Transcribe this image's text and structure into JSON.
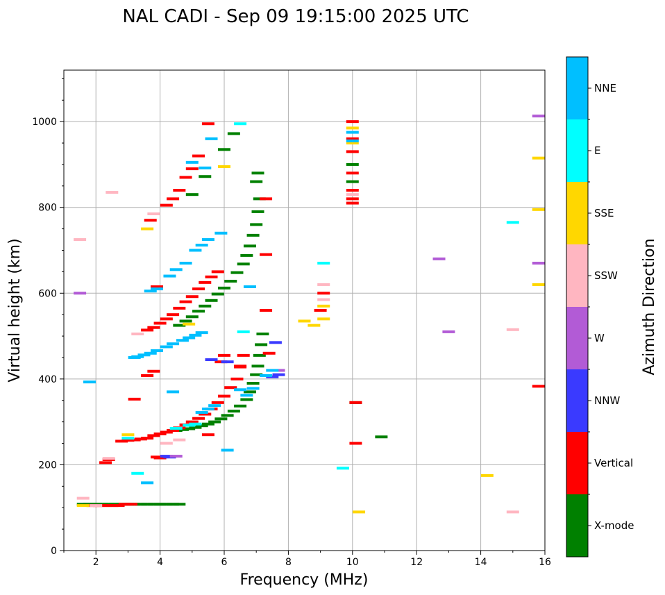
{
  "chart_data": {
    "type": "scatter",
    "title": "NAL CADI - Sep 09 19:15:00 2025 UTC",
    "xlabel": "Frequency (MHz)",
    "ylabel": "Virtual height (km)",
    "xlim": [
      1,
      16
    ],
    "ylim": [
      0,
      1120
    ],
    "xticks": [
      2,
      4,
      6,
      8,
      10,
      12,
      14,
      16
    ],
    "yticks": [
      0,
      200,
      400,
      600,
      800,
      1000
    ],
    "grid": true,
    "colorbar": {
      "label": "Azimuth Direction",
      "categories": [
        "X-mode",
        "Vertical",
        "NNW",
        "W",
        "SSW",
        "SSE",
        "E",
        "NNE"
      ],
      "colors": [
        "#008000",
        "#ff0000",
        "#3a3aff",
        "#b25bd6",
        "#ffb6c1",
        "#ffd700",
        "#00ffff",
        "#00bfff"
      ]
    },
    "series": [
      {
        "name": "X-mode",
        "points": [
          [
            1.6,
            108
          ],
          [
            1.8,
            108
          ],
          [
            2.0,
            108
          ],
          [
            2.2,
            108
          ],
          [
            2.4,
            108
          ],
          [
            2.6,
            108
          ],
          [
            2.8,
            108
          ],
          [
            3.0,
            108
          ],
          [
            3.2,
            108
          ],
          [
            3.4,
            108
          ],
          [
            3.6,
            108
          ],
          [
            3.8,
            108
          ],
          [
            4.0,
            108
          ],
          [
            4.2,
            108
          ],
          [
            4.4,
            108
          ],
          [
            4.6,
            108
          ],
          [
            4.5,
            280
          ],
          [
            4.7,
            282
          ],
          [
            4.9,
            284
          ],
          [
            5.1,
            287
          ],
          [
            5.3,
            291
          ],
          [
            5.5,
            295
          ],
          [
            5.7,
            300
          ],
          [
            5.9,
            307
          ],
          [
            6.1,
            315
          ],
          [
            6.3,
            325
          ],
          [
            6.5,
            337
          ],
          [
            6.7,
            352
          ],
          [
            6.8,
            370
          ],
          [
            6.9,
            390
          ],
          [
            7.0,
            410
          ],
          [
            7.05,
            430
          ],
          [
            7.1,
            455
          ],
          [
            7.15,
            480
          ],
          [
            7.2,
            505
          ],
          [
            4.6,
            525
          ],
          [
            4.8,
            535
          ],
          [
            5.0,
            545
          ],
          [
            5.2,
            558
          ],
          [
            5.4,
            570
          ],
          [
            5.6,
            583
          ],
          [
            5.8,
            598
          ],
          [
            6.0,
            612
          ],
          [
            6.2,
            628
          ],
          [
            6.4,
            648
          ],
          [
            6.6,
            668
          ],
          [
            6.7,
            688
          ],
          [
            6.8,
            710
          ],
          [
            6.9,
            735
          ],
          [
            7.0,
            760
          ],
          [
            7.05,
            790
          ],
          [
            7.1,
            820
          ],
          [
            7.0,
            860
          ],
          [
            7.05,
            880
          ],
          [
            6.0,
            935
          ],
          [
            6.3,
            972
          ],
          [
            5.4,
            872
          ],
          [
            5.0,
            830
          ],
          [
            10.0,
            900
          ],
          [
            10.0,
            860
          ],
          [
            10.9,
            265
          ],
          [
            10.1,
            345
          ]
        ]
      },
      {
        "name": "Vertical",
        "points": [
          [
            1.9,
            105
          ],
          [
            2.1,
            105
          ],
          [
            2.3,
            105
          ],
          [
            2.5,
            105
          ],
          [
            2.7,
            105
          ],
          [
            2.9,
            108
          ],
          [
            3.1,
            108
          ],
          [
            2.3,
            205
          ],
          [
            2.4,
            212
          ],
          [
            2.8,
            255
          ],
          [
            3.0,
            257
          ],
          [
            3.2,
            258
          ],
          [
            3.4,
            260
          ],
          [
            3.6,
            262
          ],
          [
            3.8,
            268
          ],
          [
            4.0,
            272
          ],
          [
            4.2,
            276
          ],
          [
            4.4,
            280
          ],
          [
            4.6,
            286
          ],
          [
            4.8,
            293
          ],
          [
            5.0,
            300
          ],
          [
            5.2,
            308
          ],
          [
            5.4,
            318
          ],
          [
            5.6,
            330
          ],
          [
            5.8,
            345
          ],
          [
            6.0,
            360
          ],
          [
            6.2,
            380
          ],
          [
            6.4,
            400
          ],
          [
            6.5,
            428
          ],
          [
            6.6,
            455
          ],
          [
            5.9,
            440
          ],
          [
            6.0,
            455
          ],
          [
            5.5,
            270
          ],
          [
            3.6,
            408
          ],
          [
            3.8,
            418
          ],
          [
            3.2,
            353
          ],
          [
            3.6,
            514
          ],
          [
            3.8,
            520
          ],
          [
            4.0,
            530
          ],
          [
            4.2,
            540
          ],
          [
            4.4,
            550
          ],
          [
            4.6,
            565
          ],
          [
            4.8,
            580
          ],
          [
            5.0,
            592
          ],
          [
            5.2,
            610
          ],
          [
            5.4,
            625
          ],
          [
            5.6,
            638
          ],
          [
            5.8,
            650
          ],
          [
            4.2,
            805
          ],
          [
            4.4,
            820
          ],
          [
            4.6,
            840
          ],
          [
            4.8,
            870
          ],
          [
            5.0,
            890
          ],
          [
            5.2,
            920
          ],
          [
            5.5,
            995
          ],
          [
            3.7,
            770
          ],
          [
            3.9,
            615
          ],
          [
            3.9,
            218
          ],
          [
            4.0,
            216
          ],
          [
            7.3,
            820
          ],
          [
            7.3,
            690
          ],
          [
            7.3,
            560
          ],
          [
            7.4,
            460
          ],
          [
            10.0,
            1000
          ],
          [
            10.0,
            960
          ],
          [
            10.0,
            930
          ],
          [
            10.0,
            880
          ],
          [
            10.0,
            840
          ],
          [
            10.0,
            820
          ],
          [
            10.0,
            810
          ],
          [
            10.1,
            250
          ],
          [
            10.1,
            345
          ],
          [
            9.0,
            560
          ],
          [
            9.1,
            600
          ],
          [
            15.8,
            383
          ],
          [
            6.5,
            430
          ]
        ]
      },
      {
        "name": "NNW",
        "points": [
          [
            7.6,
            485
          ],
          [
            7.7,
            410
          ],
          [
            7.5,
            405
          ],
          [
            4.2,
            220
          ],
          [
            4.3,
            218
          ],
          [
            5.6,
            445
          ],
          [
            6.1,
            440
          ]
        ]
      },
      {
        "name": "W",
        "points": [
          [
            1.5,
            600
          ],
          [
            7.7,
            420
          ],
          [
            12.7,
            680
          ],
          [
            13.0,
            510
          ],
          [
            15.8,
            1013
          ],
          [
            15.8,
            670
          ],
          [
            4.5,
            220
          ]
        ]
      },
      {
        "name": "SSW",
        "points": [
          [
            1.6,
            122
          ],
          [
            2.4,
            215
          ],
          [
            2.5,
            835
          ],
          [
            3.3,
            505
          ],
          [
            4.2,
            250
          ],
          [
            4.6,
            258
          ],
          [
            9.1,
            620
          ],
          [
            9.1,
            585
          ],
          [
            10.0,
            830
          ],
          [
            15.0,
            515
          ],
          [
            15.0,
            90
          ],
          [
            3.8,
            785
          ],
          [
            1.5,
            725
          ],
          [
            2.0,
            105
          ]
        ]
      },
      {
        "name": "SSE",
        "points": [
          [
            1.6,
            105
          ],
          [
            3.0,
            270
          ],
          [
            3.6,
            750
          ],
          [
            4.9,
            528
          ],
          [
            6.0,
            895
          ],
          [
            8.5,
            535
          ],
          [
            8.8,
            525
          ],
          [
            9.1,
            570
          ],
          [
            9.1,
            540
          ],
          [
            10.0,
            985
          ],
          [
            10.0,
            950
          ],
          [
            10.2,
            90
          ],
          [
            14.2,
            175
          ],
          [
            15.8,
            915
          ],
          [
            15.8,
            795
          ],
          [
            15.8,
            620
          ]
        ]
      },
      {
        "name": "E",
        "points": [
          [
            3.0,
            262
          ],
          [
            6.5,
            995
          ],
          [
            6.6,
            510
          ],
          [
            9.1,
            670
          ],
          [
            9.7,
            192
          ],
          [
            15.0,
            765
          ],
          [
            3.3,
            180
          ],
          [
            4.5,
            285
          ],
          [
            4.9,
            292
          ],
          [
            5.1,
            295
          ]
        ]
      },
      {
        "name": "NNE",
        "points": [
          [
            1.8,
            393
          ],
          [
            3.3,
            452
          ],
          [
            3.5,
            456
          ],
          [
            3.7,
            460
          ],
          [
            3.9,
            466
          ],
          [
            4.2,
            475
          ],
          [
            4.4,
            482
          ],
          [
            4.7,
            490
          ],
          [
            4.9,
            496
          ],
          [
            5.1,
            502
          ],
          [
            5.3,
            508
          ],
          [
            3.7,
            605
          ],
          [
            3.9,
            610
          ],
          [
            4.3,
            640
          ],
          [
            4.5,
            655
          ],
          [
            4.8,
            670
          ],
          [
            5.1,
            700
          ],
          [
            5.3,
            712
          ],
          [
            5.5,
            725
          ],
          [
            5.9,
            740
          ],
          [
            4.4,
            370
          ],
          [
            3.6,
            158
          ],
          [
            10.0,
            975
          ],
          [
            10.0,
            955
          ],
          [
            6.5,
            375
          ],
          [
            6.7,
            362
          ],
          [
            6.9,
            378
          ],
          [
            5.6,
            960
          ],
          [
            5.4,
            892
          ],
          [
            5.0,
            905
          ],
          [
            5.7,
            338
          ],
          [
            5.5,
            330
          ],
          [
            5.3,
            322
          ],
          [
            6.1,
            234
          ],
          [
            6.8,
            615
          ],
          [
            7.3,
            408
          ],
          [
            7.5,
            420
          ],
          [
            3.2,
            450
          ]
        ]
      }
    ]
  }
}
